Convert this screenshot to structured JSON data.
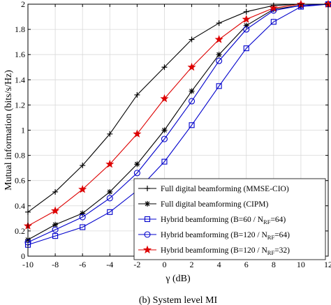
{
  "chart_data": {
    "type": "line",
    "xlabel": "γ (dB)",
    "ylabel": "Mutual information (bits/s/Hz)",
    "caption": "(b) System level MI",
    "xlim": [
      -10,
      12
    ],
    "ylim": [
      0,
      2
    ],
    "xticks": [
      -10,
      -8,
      -6,
      -4,
      -2,
      0,
      2,
      4,
      6,
      8,
      10,
      12
    ],
    "yticks": [
      0,
      0.2,
      0.4,
      0.6,
      0.8,
      1,
      1.2,
      1.4,
      1.6,
      1.8,
      2
    ],
    "grid": true,
    "legend_position": "bottom-right",
    "x": [
      -10,
      -8,
      -6,
      -4,
      -2,
      0,
      2,
      4,
      6,
      8,
      10,
      12
    ],
    "series": [
      {
        "name": "Full digital beamforming (MMSE-CIO)",
        "color": "#000000",
        "marker": "plus",
        "values": [
          0.35,
          0.51,
          0.72,
          0.97,
          1.28,
          1.5,
          1.72,
          1.85,
          1.94,
          1.99,
          2.0,
          2.0
        ]
      },
      {
        "name": "Full digital beamforming (CIPM)",
        "color": "#000000",
        "marker": "asterisk",
        "values": [
          0.13,
          0.25,
          0.34,
          0.51,
          0.73,
          1.0,
          1.31,
          1.6,
          1.83,
          1.96,
          1.99,
          2.0
        ]
      },
      {
        "name": "Hybrid beamforming (B=60 / N_RF=64)",
        "color": "#0000cc",
        "marker": "square",
        "values": [
          0.09,
          0.16,
          0.23,
          0.35,
          0.52,
          0.75,
          1.04,
          1.35,
          1.65,
          1.86,
          1.98,
          2.0
        ]
      },
      {
        "name": "Hybrid beamforming (B=120 / N_RF=64)",
        "color": "#0000cc",
        "marker": "circle",
        "values": [
          0.11,
          0.21,
          0.31,
          0.46,
          0.66,
          0.93,
          1.23,
          1.55,
          1.8,
          1.95,
          1.99,
          2.0
        ]
      },
      {
        "name": "Hybrid beamforming (B=120 / N_RF=32)",
        "color": "#dd0000",
        "marker": "star",
        "values": [
          0.24,
          0.36,
          0.53,
          0.73,
          0.97,
          1.25,
          1.5,
          1.72,
          1.88,
          1.97,
          2.0,
          2.0
        ]
      }
    ]
  }
}
